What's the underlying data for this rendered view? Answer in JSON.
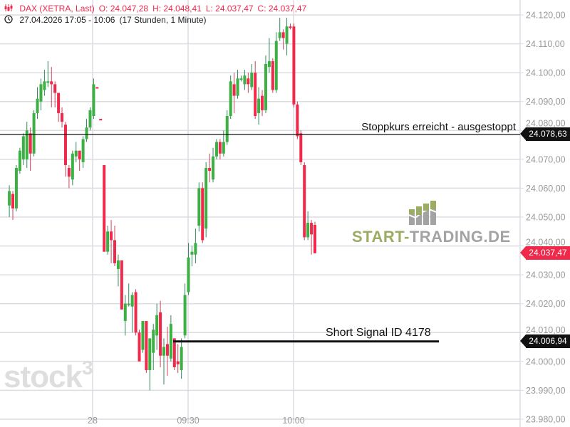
{
  "header": {
    "instrument": "DAX (XETRA, Last)",
    "open": "O: 24.047,28",
    "high": "H: 24.048,41",
    "low": "L: 24.037,47",
    "close": "C: 24.037,47",
    "range": "27.04.2026 17:05 - 10:06",
    "interval": "(17 Stunden, 1 Minute)",
    "icons": [
      "candlestick-icon",
      "clock-icon"
    ]
  },
  "annotations": {
    "stop_text": "Stoppkurs erreicht - ausgestoppt",
    "stop_price": 24078.63,
    "stop_label": "24.078,63",
    "signal_text": "Short Signal  ID 4178",
    "signal_price": 24006.94,
    "signal_label": "24.006,94",
    "last_price": 24037.47,
    "last_label": "24.037,47"
  },
  "watermarks": {
    "stock3": "stock3",
    "start_trading_a": "START-",
    "start_trading_b": "TRADING.DE"
  },
  "colors": {
    "up": "#3cb043",
    "down": "#f0284a",
    "grid": "#dcdce3",
    "axis_text": "#999999",
    "logo_green": "#9aad62",
    "logo_gray": "#a3a3a3"
  },
  "chart_data": {
    "type": "candlestick",
    "title": "",
    "ylim": [
      23980,
      24120
    ],
    "y_ticks": [
      24120,
      24110,
      24100,
      24090,
      24080,
      24070,
      24060,
      24050,
      24040,
      24030,
      24020,
      24010,
      24000,
      23990,
      23980
    ],
    "y_tick_labels": [
      "24.120,00",
      "24.110,00",
      "24.100,00",
      "24.090,00",
      "24.080,00",
      "24.070,00",
      "24.060,00",
      "24.050,00",
      "24.040,00",
      "24.030,00",
      "24.020,00",
      "24.010,00",
      "24.000,00",
      "23.990,00",
      "23.980,00"
    ],
    "x_tick_labels": [
      "28",
      "09:30",
      "10:00"
    ],
    "grid": true,
    "ohlc_offset_base": 24000,
    "ohlc": [
      [
        54,
        61,
        50,
        59
      ],
      [
        58,
        59,
        49,
        53
      ],
      [
        53,
        68,
        52,
        67
      ],
      [
        66,
        74,
        65,
        73
      ],
      [
        70,
        79,
        68,
        78
      ],
      [
        70,
        83,
        67,
        80
      ],
      [
        79,
        81,
        66,
        72
      ],
      [
        72,
        87,
        71,
        86
      ],
      [
        86,
        95,
        84,
        91
      ],
      [
        90,
        98,
        87,
        96
      ],
      [
        94,
        101,
        92,
        97
      ],
      [
        97,
        104,
        95,
        97
      ],
      [
        97,
        102,
        88,
        96
      ],
      [
        96,
        97,
        88,
        93
      ],
      [
        93,
        93,
        83,
        86
      ],
      [
        86,
        88,
        81,
        83
      ],
      [
        82,
        83,
        64,
        68
      ],
      [
        67,
        68,
        60,
        64
      ],
      [
        63,
        73,
        61,
        72
      ],
      [
        71,
        76,
        69,
        73
      ],
      [
        73,
        73,
        66,
        70
      ],
      [
        69,
        78,
        67,
        77
      ],
      [
        77,
        84,
        76,
        81
      ],
      [
        81,
        88,
        80,
        87
      ],
      [
        85,
        98,
        84,
        96
      ],
      [
        95,
        95,
        94.5,
        94.5
      ],
      [
        84,
        84,
        83.5,
        83.5
      ],
      [
        68,
        68,
        38,
        38
      ],
      [
        38,
        47,
        37,
        45
      ],
      [
        45,
        49,
        34,
        42
      ],
      [
        42,
        47,
        33,
        34
      ],
      [
        32,
        37,
        26,
        35
      ],
      [
        35,
        35,
        18,
        18
      ],
      [
        14,
        23,
        9,
        20
      ],
      [
        20,
        27,
        19,
        20
      ],
      [
        19,
        24,
        10,
        23
      ],
      [
        24,
        25,
        9,
        10
      ],
      [
        10,
        11,
        0,
        0
      ],
      [
        4,
        14,
        3,
        14
      ],
      [
        14,
        14,
        -4,
        -3
      ],
      [
        -3,
        8,
        -10,
        8
      ],
      [
        3,
        13,
        -3,
        11
      ],
      [
        9,
        20,
        4,
        16
      ],
      [
        17,
        21,
        -2,
        2
      ],
      [
        2,
        8,
        -8,
        5
      ],
      [
        6,
        12,
        -5,
        2
      ],
      [
        1,
        16,
        0,
        13
      ],
      [
        8,
        8,
        -3,
        -2
      ],
      [
        0,
        6,
        -4,
        -1
      ],
      [
        -3,
        8,
        -6,
        5
      ],
      [
        9,
        27,
        8,
        23
      ],
      [
        24,
        41,
        23,
        36
      ],
      [
        37,
        40,
        33,
        38
      ],
      [
        37,
        46,
        34,
        41
      ],
      [
        47,
        62,
        45,
        60
      ],
      [
        60,
        62,
        41,
        42
      ],
      [
        46,
        69,
        43,
        67
      ],
      [
        67,
        72,
        62,
        66
      ],
      [
        63,
        74,
        62,
        71
      ],
      [
        71,
        77,
        70,
        76
      ],
      [
        76,
        77,
        70,
        72
      ],
      [
        72,
        80,
        71,
        76
      ],
      [
        76,
        87,
        75,
        85
      ],
      [
        85,
        99,
        84,
        97
      ],
      [
        96,
        100,
        86,
        92
      ],
      [
        92,
        101,
        91,
        98
      ],
      [
        98,
        99,
        97,
        98
      ],
      [
        96,
        101,
        94,
        99
      ],
      [
        98,
        100,
        93,
        96
      ],
      [
        95,
        103,
        94,
        100
      ],
      [
        100,
        104,
        84,
        85
      ],
      [
        86,
        95,
        82,
        91
      ],
      [
        92,
        94,
        85,
        87
      ],
      [
        87,
        106,
        86,
        103
      ],
      [
        102,
        112,
        100,
        104
      ],
      [
        104,
        105,
        93,
        94
      ],
      [
        94,
        114,
        93,
        111
      ],
      [
        112,
        119,
        111,
        114
      ],
      [
        114,
        115,
        108,
        112
      ],
      [
        110,
        119,
        106,
        116
      ],
      [
        116,
        117,
        115,
        115.5
      ],
      [
        116,
        117,
        88,
        89
      ],
      [
        89,
        90,
        77,
        78
      ],
      [
        79,
        80,
        68,
        69
      ],
      [
        68,
        69,
        42,
        43
      ],
      [
        43,
        52,
        42,
        48
      ],
      [
        48,
        49,
        37,
        44
      ],
      [
        47.28,
        48.41,
        37.47,
        37.47
      ]
    ]
  }
}
